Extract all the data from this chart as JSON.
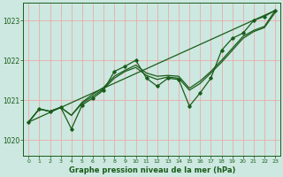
{
  "title": "Graphe pression niveau de la mer (hPa)",
  "background_color": "#cce8e0",
  "grid_color": "#f0a0a0",
  "line_color": "#1a5c1a",
  "xlim": [
    -0.5,
    23.5
  ],
  "ylim": [
    1019.6,
    1023.45
  ],
  "yticks": [
    1020,
    1021,
    1022,
    1023
  ],
  "xticks": [
    0,
    1,
    2,
    3,
    4,
    5,
    6,
    7,
    8,
    9,
    10,
    11,
    12,
    13,
    14,
    15,
    16,
    17,
    18,
    19,
    20,
    21,
    22,
    23
  ],
  "trend_x": [
    0,
    23
  ],
  "trend_y": [
    1020.45,
    1023.25
  ],
  "smooth1": [
    1020.45,
    1020.78,
    1020.72,
    1020.82,
    1020.62,
    1020.92,
    1021.1,
    1021.28,
    1021.55,
    1021.72,
    1021.82,
    1021.62,
    1021.52,
    1021.58,
    1021.55,
    1021.25,
    1021.42,
    1021.68,
    1021.95,
    1022.25,
    1022.55,
    1022.72,
    1022.82,
    1023.2
  ],
  "smooth2": [
    1020.45,
    1020.78,
    1020.72,
    1020.82,
    1020.62,
    1020.95,
    1021.15,
    1021.32,
    1021.6,
    1021.75,
    1021.88,
    1021.68,
    1021.6,
    1021.62,
    1021.6,
    1021.3,
    1021.48,
    1021.72,
    1022.0,
    1022.3,
    1022.6,
    1022.75,
    1022.85,
    1023.25
  ],
  "zigzag": [
    1020.45,
    1020.78,
    1020.72,
    1020.82,
    1020.28,
    1020.88,
    1021.05,
    1021.25,
    1021.72,
    1021.85,
    1022.0,
    1021.55,
    1021.35,
    1021.55,
    1021.52,
    1020.85,
    1021.18,
    1021.55,
    1022.25,
    1022.55,
    1022.68,
    1023.0,
    1023.1,
    1023.25
  ]
}
